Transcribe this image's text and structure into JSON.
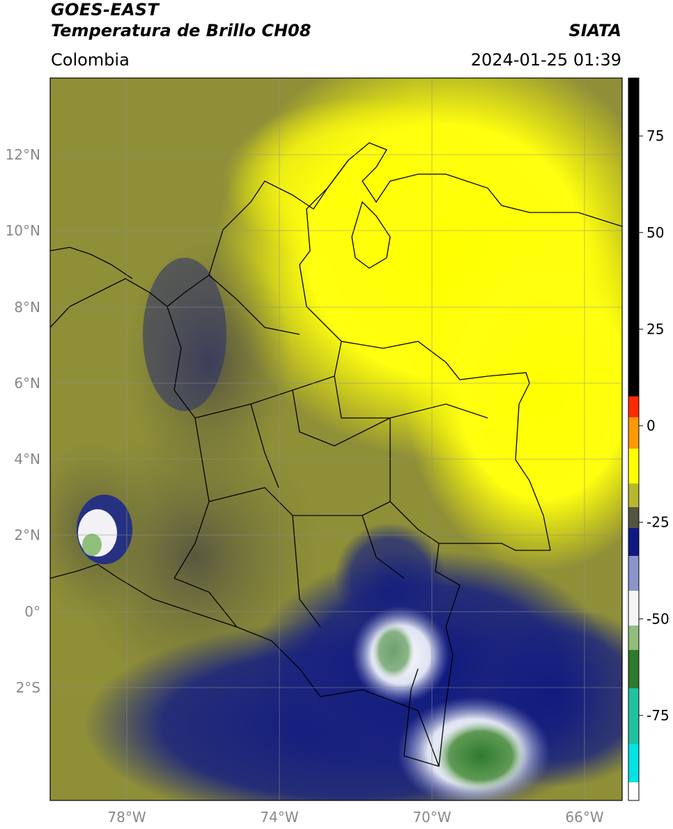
{
  "header": {
    "satellite": "GOES-EAST",
    "product": "Temperatura de Brillo CH08",
    "source": "SIATA",
    "region": "Colombia",
    "datetime": "2024-01-25 01:39"
  },
  "map": {
    "lat_ticks": [
      "12°N",
      "10°N",
      "8°N",
      "6°N",
      "4°N",
      "2°N",
      "0°",
      "2°S"
    ],
    "lon_ticks": [
      "78°W",
      "74°W",
      "70°W",
      "66°W"
    ],
    "lon_range": [
      -79.8,
      -64.8
    ],
    "lat_range": [
      -5.0,
      14.0
    ]
  },
  "colorbar": {
    "ticks": [
      "75",
      "50",
      "25",
      "0",
      "-25",
      "-50",
      "-75"
    ],
    "tick_values": [
      75,
      50,
      25,
      0,
      -25,
      -50,
      -75
    ],
    "range": [
      -97,
      90
    ],
    "colors": {
      "black": "#000000",
      "red": "#ff2a00",
      "orange": "#ff9900",
      "yellow": "#ffff00",
      "olive": "#b8b82e",
      "gray": "#55553f",
      "navy": "#0f1a80",
      "white": "#f4f4f4",
      "green": "#2f7a2f",
      "teal": "#1fc2a0",
      "cyan": "#00e4e4"
    }
  }
}
